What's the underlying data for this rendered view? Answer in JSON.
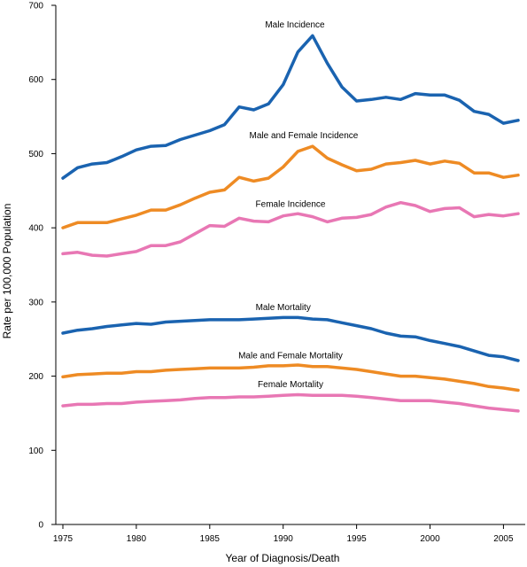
{
  "chart_data": {
    "type": "line",
    "title": "",
    "xlabel": "Year of Diagnosis/Death",
    "ylabel": "Rate per 100,000 Population",
    "xlim": [
      1975,
      2006
    ],
    "ylim": [
      0,
      700
    ],
    "xticks": [
      1975,
      1980,
      1985,
      1990,
      1995,
      2000,
      2005
    ],
    "yticks": [
      0,
      100,
      200,
      300,
      400,
      500,
      600,
      700
    ],
    "grid": false,
    "legend": "inline labels",
    "x": [
      1975,
      1976,
      1977,
      1978,
      1979,
      1980,
      1981,
      1982,
      1983,
      1984,
      1985,
      1986,
      1987,
      1988,
      1989,
      1990,
      1991,
      1992,
      1993,
      1994,
      1995,
      1996,
      1997,
      1998,
      1999,
      2000,
      2001,
      2002,
      2003,
      2004,
      2005,
      2006
    ],
    "series": [
      {
        "name": "Male Incidence",
        "color": "#1a63b0",
        "values": [
          467,
          481,
          486,
          488,
          496,
          505,
          510,
          511,
          519,
          525,
          531,
          539,
          563,
          559,
          567,
          593,
          637,
          659,
          622,
          590,
          571,
          573,
          576,
          573,
          581,
          579,
          579,
          572,
          557,
          553,
          541,
          545
        ]
      },
      {
        "name": "Male and Female Incidence",
        "color": "#ee8b24",
        "values": [
          400,
          407,
          407,
          407,
          412,
          417,
          424,
          424,
          431,
          440,
          448,
          451,
          468,
          463,
          467,
          482,
          503,
          510,
          494,
          485,
          477,
          479,
          486,
          488,
          491,
          486,
          490,
          487,
          474,
          474,
          468,
          471
        ]
      },
      {
        "name": "Female Incidence",
        "color": "#e877b4",
        "values": [
          365,
          367,
          363,
          362,
          365,
          368,
          376,
          376,
          381,
          392,
          403,
          402,
          413,
          409,
          408,
          416,
          419,
          415,
          408,
          413,
          414,
          418,
          428,
          434,
          430,
          422,
          426,
          427,
          415,
          418,
          416,
          419
        ]
      },
      {
        "name": "Male Mortality",
        "color": "#1a63b0",
        "values": [
          258,
          262,
          264,
          267,
          269,
          271,
          270,
          273,
          274,
          275,
          276,
          276,
          276,
          277,
          278,
          279,
          279,
          277,
          276,
          272,
          268,
          264,
          258,
          254,
          253,
          248,
          244,
          240,
          234,
          228,
          226,
          221
        ]
      },
      {
        "name": "Male and Female Mortality",
        "color": "#ee8b24",
        "values": [
          199,
          202,
          203,
          204,
          204,
          206,
          206,
          208,
          209,
          210,
          211,
          211,
          211,
          212,
          214,
          214,
          215,
          213,
          213,
          211,
          209,
          206,
          203,
          200,
          200,
          198,
          196,
          193,
          190,
          186,
          184,
          181
        ]
      },
      {
        "name": "Female Mortality",
        "color": "#e877b4",
        "values": [
          160,
          162,
          162,
          163,
          163,
          165,
          166,
          167,
          168,
          170,
          171,
          171,
          172,
          172,
          173,
          174,
          175,
          174,
          174,
          174,
          173,
          171,
          169,
          167,
          167,
          167,
          165,
          163,
          160,
          157,
          155,
          153
        ]
      }
    ],
    "label_anchors": [
      {
        "text": "Male Incidence",
        "x": 1990.8,
        "y": 670
      },
      {
        "text": "Male and Female Incidence",
        "x": 1991.4,
        "y": 521
      },
      {
        "text": "Female Incidence",
        "x": 1990.5,
        "y": 428
      },
      {
        "text": "Male Mortality",
        "x": 1990,
        "y": 289
      },
      {
        "text": "Male and Female Mortality",
        "x": 1990.5,
        "y": 224
      },
      {
        "text": "Female Mortality",
        "x": 1990.5,
        "y": 185
      }
    ]
  }
}
